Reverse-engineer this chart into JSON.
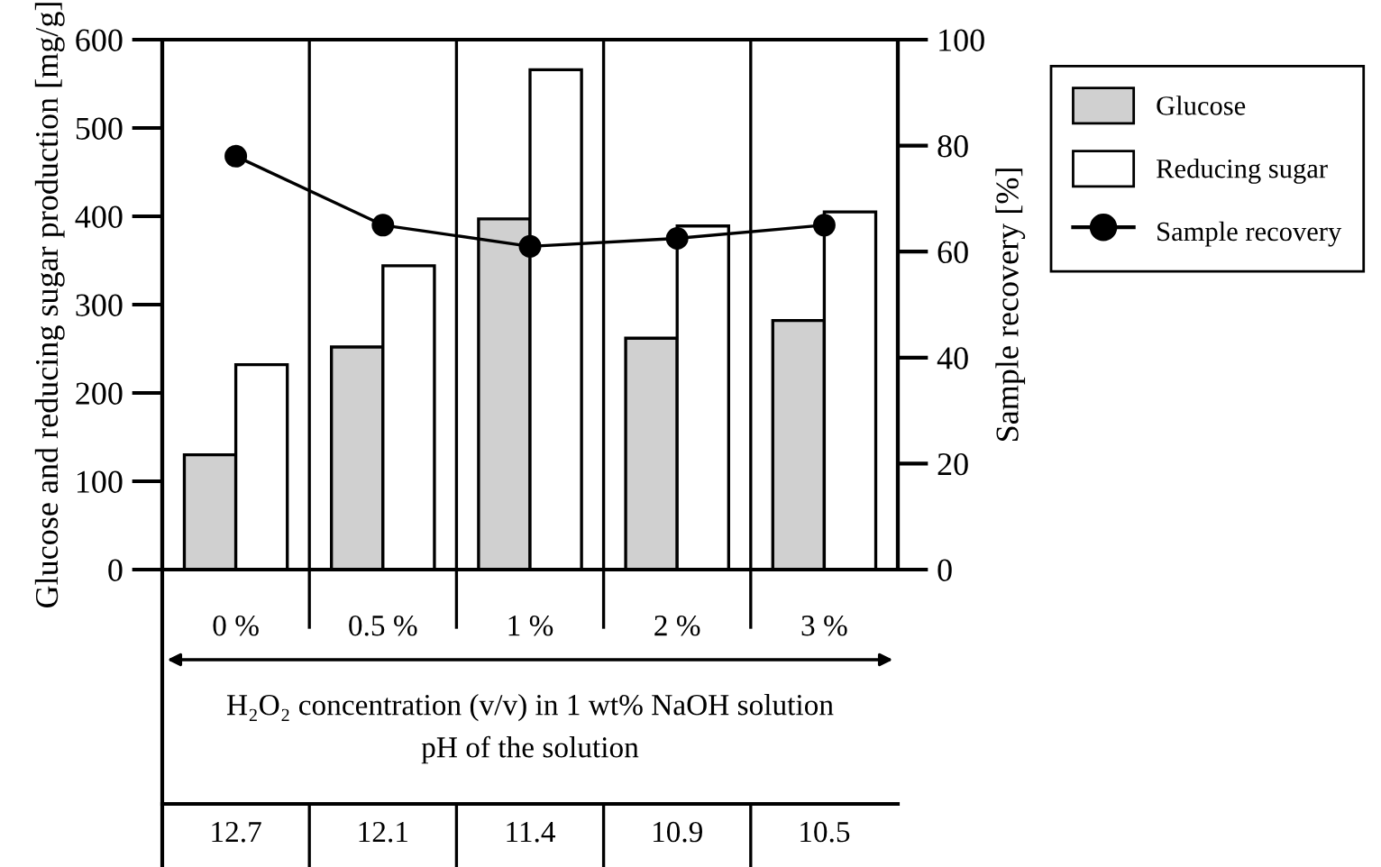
{
  "chart_data": {
    "type": "bar",
    "categories": [
      "0 %",
      "0.5 %",
      "1 %",
      "2 %",
      "3 %"
    ],
    "xlabel": "H₂O₂ concentration (v/v) in 1 wt% NaOH solution",
    "ylabel": "Glucose and reducing sugar production [mg/g]",
    "y2label": "Sample recovery [%]",
    "series": [
      {
        "name": "Glucose",
        "color": "#d0d0d0",
        "values": [
          130,
          252,
          397,
          262,
          282
        ]
      },
      {
        "name": "Reducing sugar",
        "color": "#ffffff",
        "values": [
          232,
          344,
          566,
          389,
          405
        ]
      },
      {
        "name": "Sample recovery",
        "type": "line",
        "axis": "y2",
        "color": "#000000",
        "values": [
          78,
          65,
          61,
          62.5,
          65
        ]
      }
    ],
    "ylim": [
      0,
      600
    ],
    "yticks": [
      0,
      100,
      200,
      300,
      400,
      500,
      600
    ],
    "y2lim": [
      0,
      100
    ],
    "y2ticks": [
      0,
      20,
      40,
      60,
      80,
      100
    ],
    "marker": "circle",
    "line_style": "solid",
    "legend": "top right",
    "annotations": [
      "pH of the solution",
      "12.7",
      "12.1",
      "11.4",
      "10.9",
      "10.5"
    ]
  }
}
